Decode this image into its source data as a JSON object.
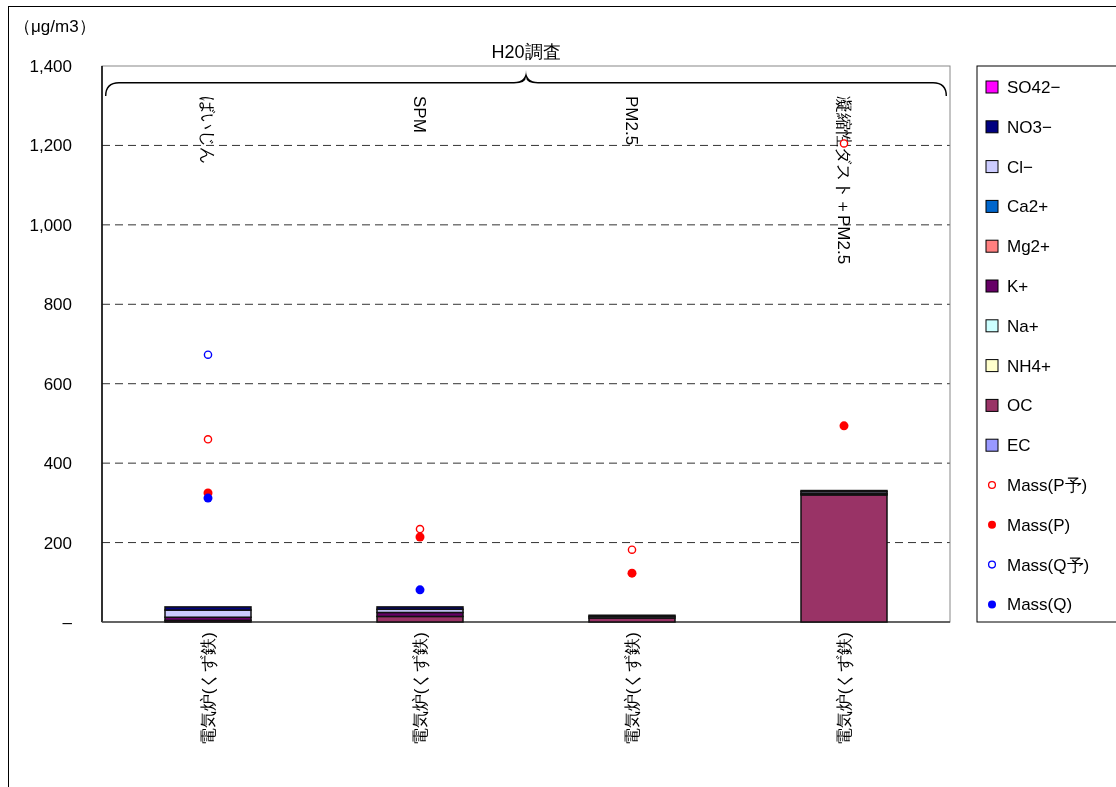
{
  "chart_data": {
    "type": "bar",
    "stacked": true,
    "ylabel": "（μg/m3）",
    "categories": [
      "電気炉(くず鉄)",
      "電気炉(くず鉄)",
      "電気炉(くず鉄)",
      "電気炉(くず鉄)"
    ],
    "annotations": [
      "H20調査",
      "ばいじん",
      "SPM",
      "PM2.5",
      "凝縮性ダスト＋PM2.5"
    ],
    "ylim": [
      0,
      1400
    ],
    "yticks": [
      {
        "value": 0,
        "label": "–"
      },
      200,
      400,
      600,
      800,
      {
        "value": 1000,
        "label": "1,000"
      },
      {
        "value": 1200,
        "label": "1,200"
      },
      {
        "value": 1400,
        "label": "1,400"
      }
    ],
    "grid": "y",
    "legend": "right",
    "line_style": "dashed",
    "series": [
      {
        "name": "EC",
        "color": "#9999ff",
        "values": [
          0,
          0,
          0,
          0
        ]
      },
      {
        "name": "OC",
        "color": "#993366",
        "values": [
          4,
          14,
          10,
          320
        ]
      },
      {
        "name": "NH4+",
        "color": "#ffffcc",
        "values": [
          0,
          0,
          0,
          0
        ]
      },
      {
        "name": "Na+",
        "color": "#ccffff",
        "values": [
          0,
          0,
          0,
          0
        ]
      },
      {
        "name": "K+",
        "color": "#660066",
        "values": [
          8,
          10,
          null,
          3
        ]
      },
      {
        "name": "Mg2+",
        "color": "#ff8080",
        "values": [
          0,
          0,
          0,
          0
        ]
      },
      {
        "name": "Ca2+",
        "color": "#0066cc",
        "values": [
          0,
          0,
          0,
          0
        ]
      },
      {
        "name": "Cl−",
        "color": "#ccccff",
        "values": [
          18,
          8,
          4,
          5
        ]
      },
      {
        "name": "NO3−",
        "color": "#000080",
        "values": [
          8,
          6,
          3,
          3
        ]
      },
      {
        "name": "SO42−",
        "color": "#ff00ff",
        "values": [
          0,
          0,
          0,
          0
        ]
      },
      {
        "name": "Mass(P予)",
        "type": "scatter",
        "marker": "circle-open",
        "color": "#ff0000",
        "values": [
          460,
          234,
          182,
          1205
        ]
      },
      {
        "name": "Mass(P)",
        "type": "scatter",
        "marker": "circle",
        "color": "#ff0000",
        "values": [
          325,
          214,
          123,
          494
        ]
      },
      {
        "name": "Mass(Q予)",
        "type": "scatter",
        "marker": "circle-open",
        "color": "#0000ff",
        "values": [
          673,
          null,
          null,
          null
        ]
      },
      {
        "name": "Mass(Q)",
        "type": "scatter",
        "marker": "circle",
        "color": "#0000ff",
        "values": [
          312,
          81,
          null,
          null
        ]
      }
    ]
  }
}
